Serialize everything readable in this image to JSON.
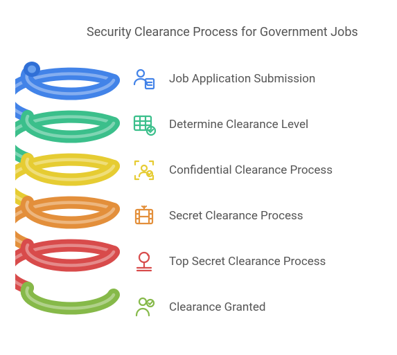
{
  "title": "Security Clearance Process for Government Jobs",
  "title_fontsize": 18,
  "title_color": "#555555",
  "background_color": "#ffffff",
  "label_color": "#555555",
  "label_fontsize": 17,
  "spiral": {
    "type": "spiral-coil",
    "coil_count": 6,
    "stroke_width": 18,
    "highlight_opacity": 0.35,
    "colors": [
      "#4383e8",
      "#3bbf8b",
      "#e6cc33",
      "#e38f3a",
      "#d84c4c",
      "#86b94a"
    ]
  },
  "steps": [
    {
      "label": "Job Application Submission",
      "icon": "person-doc-icon",
      "color": "#4383e8"
    },
    {
      "label": "Determine Clearance Level",
      "icon": "table-check-icon",
      "color": "#3bbf8b"
    },
    {
      "label": "Confidential Clearance Process",
      "icon": "scan-person-icon",
      "color": "#e6cc33"
    },
    {
      "label": "Secret Clearance Process",
      "icon": "film-flag-icon",
      "color": "#e38f3a"
    },
    {
      "label": "Top Secret Clearance Process",
      "icon": "stamp-icon",
      "color": "#d84c4c"
    },
    {
      "label": "Clearance Granted",
      "icon": "person-check-icon",
      "color": "#86b94a"
    }
  ]
}
